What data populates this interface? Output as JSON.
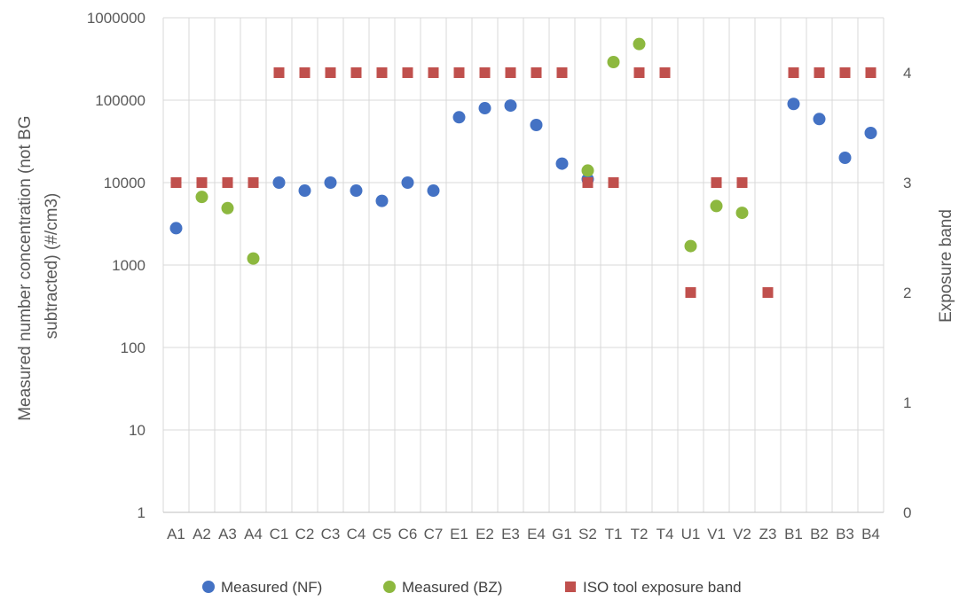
{
  "chart_data": {
    "type": "scatter",
    "categories": [
      "A1",
      "A2",
      "A3",
      "A4",
      "C1",
      "C2",
      "C3",
      "C4",
      "C5",
      "C6",
      "C7",
      "E1",
      "E2",
      "E3",
      "E4",
      "G1",
      "S2",
      "T1",
      "T2",
      "T4",
      "U1",
      "V1",
      "V2",
      "Z3",
      "B1",
      "B2",
      "B3",
      "B4"
    ],
    "series": [
      {
        "name": "Measured (NF)",
        "axis": "left",
        "marker": "circle",
        "color": "#4472C4",
        "values": [
          2800,
          null,
          null,
          null,
          10000,
          8000,
          10000,
          8000,
          6000,
          10000,
          8000,
          62000,
          80000,
          86000,
          50000,
          17000,
          11000,
          null,
          null,
          null,
          null,
          null,
          null,
          null,
          90000,
          59000,
          20000,
          40000
        ]
      },
      {
        "name": "Measured (BZ)",
        "axis": "left",
        "marker": "circle",
        "color": "#8DB83F",
        "values": [
          null,
          6700,
          4900,
          1200,
          null,
          null,
          null,
          null,
          null,
          null,
          null,
          null,
          null,
          null,
          null,
          null,
          14000,
          290000,
          480000,
          null,
          1700,
          5200,
          4300,
          null,
          null,
          null,
          null,
          null
        ]
      },
      {
        "name": "ISO tool exposure band",
        "axis": "right",
        "marker": "square",
        "color": "#C0504D",
        "values": [
          3,
          3,
          3,
          3,
          4,
          4,
          4,
          4,
          4,
          4,
          4,
          4,
          4,
          4,
          4,
          4,
          3,
          3,
          4,
          4,
          2,
          3,
          3,
          2,
          4,
          4,
          4,
          4
        ]
      }
    ],
    "y_left": {
      "label": "Measured number concentration (not BG subtracted) (#/cm3)",
      "label_lines": [
        "Measured number concentration (not BG",
        "subtracted) (#/cm3)"
      ],
      "scale": "log",
      "range": [
        1,
        1000000
      ],
      "ticks": [
        1,
        10,
        100,
        1000,
        10000,
        100000,
        1000000
      ],
      "tick_labels": [
        "1",
        "10",
        "100",
        "1000",
        "10000",
        "100000",
        "1000000"
      ]
    },
    "y_right": {
      "label": "Exposure band",
      "scale": "linear",
      "range": [
        0,
        4.5
      ],
      "ticks": [
        0,
        1,
        2,
        3,
        4
      ],
      "tick_labels": [
        "0",
        "1",
        "2",
        "3",
        "4"
      ]
    },
    "grid": "horizontal and vertical",
    "legend_position": "bottom"
  }
}
